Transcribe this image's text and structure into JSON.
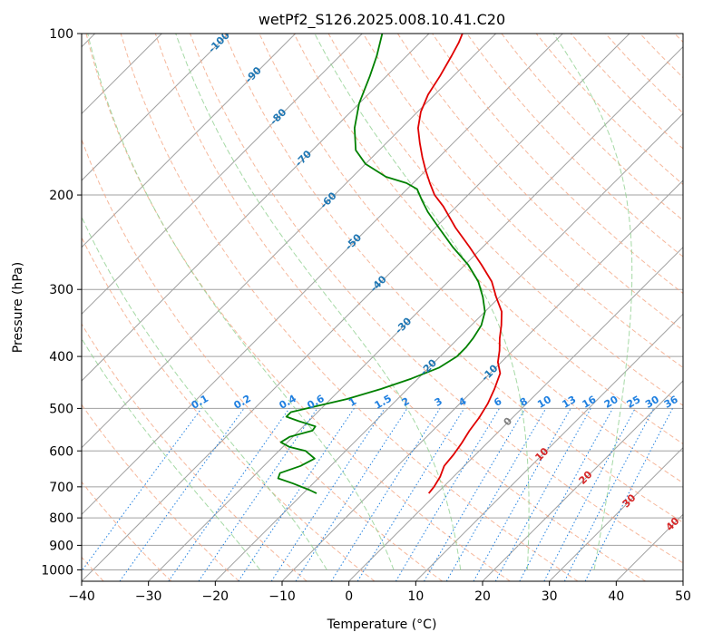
{
  "chart_data": {
    "type": "line",
    "subtype": "skew-t log-p diagram",
    "title": "wetPf2_S126.2025.008.10.41.C20",
    "xlabel": "Temperature (°C)",
    "ylabel": "Pressure (hPa)",
    "xlim": [
      -40,
      50
    ],
    "ylim": [
      1050,
      100
    ],
    "y_scale": "log",
    "x_ticks": [
      -40,
      -30,
      -20,
      -10,
      0,
      10,
      20,
      30,
      40,
      50
    ],
    "y_ticks": [
      100,
      200,
      300,
      400,
      500,
      600,
      700,
      800,
      900,
      1000
    ],
    "grid": true,
    "legend": "none",
    "colors": {
      "temperature": "#e00000",
      "dewpoint": "#008000",
      "dry_adiabat": "#f4a582",
      "moist_adiabat": "#8fcf8f",
      "isotherm": "#a0a0a0",
      "isobar": "#a0a0a0",
      "mixing_ratio": "#2080e0",
      "label_blue": "#1f77b4",
      "label_red": "#d62728",
      "label_gray": "#7f7f7f"
    },
    "series": [
      {
        "name": "",
        "role": "temperature",
        "points": [
          {
            "p": 720,
            "t": -1.2
          },
          {
            "p": 700,
            "t": -1.4
          },
          {
            "p": 670,
            "t": -2.0
          },
          {
            "p": 640,
            "t": -3.0
          },
          {
            "p": 610,
            "t": -3.3
          },
          {
            "p": 580,
            "t": -3.8
          },
          {
            "p": 550,
            "t": -4.5
          },
          {
            "p": 520,
            "t": -5.0
          },
          {
            "p": 490,
            "t": -5.8
          },
          {
            "p": 460,
            "t": -7.0
          },
          {
            "p": 430,
            "t": -8.5
          },
          {
            "p": 410,
            "t": -10.5
          },
          {
            "p": 390,
            "t": -12.0
          },
          {
            "p": 370,
            "t": -13.8
          },
          {
            "p": 350,
            "t": -15.5
          },
          {
            "p": 330,
            "t": -17.5
          },
          {
            "p": 310,
            "t": -20.5
          },
          {
            "p": 290,
            "t": -23.5
          },
          {
            "p": 270,
            "t": -27.5
          },
          {
            "p": 250,
            "t": -32.0
          },
          {
            "p": 230,
            "t": -37.0
          },
          {
            "p": 210,
            "t": -42.0
          },
          {
            "p": 200,
            "t": -45.0
          },
          {
            "p": 190,
            "t": -47.5
          },
          {
            "p": 180,
            "t": -50.0
          },
          {
            "p": 170,
            "t": -52.5
          },
          {
            "p": 160,
            "t": -55.0
          },
          {
            "p": 150,
            "t": -57.5
          },
          {
            "p": 140,
            "t": -59.5
          },
          {
            "p": 130,
            "t": -61.0
          },
          {
            "p": 120,
            "t": -62.0
          },
          {
            "p": 110,
            "t": -63.3
          },
          {
            "p": 104,
            "t": -64.2
          },
          {
            "p": 100,
            "t": -65.0
          }
        ]
      },
      {
        "name": "",
        "role": "dewpoint",
        "points": [
          {
            "p": 720,
            "t": -18.0
          },
          {
            "p": 710,
            "t": -19.5
          },
          {
            "p": 690,
            "t": -23.0
          },
          {
            "p": 675,
            "t": -26.0
          },
          {
            "p": 660,
            "t": -26.5
          },
          {
            "p": 640,
            "t": -24.5
          },
          {
            "p": 620,
            "t": -23.5
          },
          {
            "p": 600,
            "t": -26.0
          },
          {
            "p": 590,
            "t": -29.0
          },
          {
            "p": 578,
            "t": -31.0
          },
          {
            "p": 565,
            "t": -30.5
          },
          {
            "p": 550,
            "t": -28.0
          },
          {
            "p": 540,
            "t": -28.2
          },
          {
            "p": 528,
            "t": -31.5
          },
          {
            "p": 518,
            "t": -34.0
          },
          {
            "p": 508,
            "t": -34.0
          },
          {
            "p": 495,
            "t": -31.0
          },
          {
            "p": 480,
            "t": -27.5
          },
          {
            "p": 460,
            "t": -24.0
          },
          {
            "p": 440,
            "t": -21.0
          },
          {
            "p": 420,
            "t": -18.5
          },
          {
            "p": 400,
            "t": -17.5
          },
          {
            "p": 385,
            "t": -17.5
          },
          {
            "p": 370,
            "t": -17.8
          },
          {
            "p": 350,
            "t": -18.5
          },
          {
            "p": 330,
            "t": -20.0
          },
          {
            "p": 310,
            "t": -22.5
          },
          {
            "p": 290,
            "t": -25.5
          },
          {
            "p": 270,
            "t": -29.5
          },
          {
            "p": 250,
            "t": -34.5
          },
          {
            "p": 230,
            "t": -39.5
          },
          {
            "p": 215,
            "t": -43.5
          },
          {
            "p": 205,
            "t": -46.0
          },
          {
            "p": 195,
            "t": -48.5
          },
          {
            "p": 190,
            "t": -51.0
          },
          {
            "p": 185,
            "t": -55.0
          },
          {
            "p": 175,
            "t": -60.0
          },
          {
            "p": 165,
            "t": -63.5
          },
          {
            "p": 150,
            "t": -67.0
          },
          {
            "p": 135,
            "t": -70.0
          },
          {
            "p": 120,
            "t": -72.5
          },
          {
            "p": 110,
            "t": -74.5
          },
          {
            "p": 100,
            "t": -77.0
          }
        ]
      }
    ],
    "isotherm_labels": {
      "values": [
        -100,
        -90,
        -80,
        -70,
        -60,
        -50,
        -40,
        -30,
        -20,
        -10,
        0,
        10,
        20,
        30,
        40
      ],
      "text": [
        "-100",
        "-90",
        "-80",
        "-70",
        "-60",
        "-50",
        "-40",
        "-30",
        "-20",
        "-10",
        "0",
        "10",
        "20",
        "30",
        "40"
      ]
    },
    "mixing_ratio_labels": {
      "values": [
        0.1,
        0.2,
        0.4,
        0.6,
        1,
        1.5,
        2,
        3,
        4,
        6,
        8,
        10,
        13,
        16,
        20,
        25,
        30,
        36
      ],
      "text": [
        "0.1",
        "0.2",
        "0.4",
        "0.6",
        "1",
        "1.5",
        "2",
        "3",
        "4",
        "6",
        "8",
        "10",
        "13",
        "16",
        "20",
        "25",
        "30",
        "36"
      ]
    },
    "dry_adiabats_c": [
      -80,
      -70,
      -60,
      -50,
      -40,
      -30,
      -20,
      -10,
      0,
      10,
      20,
      30,
      40,
      50,
      60,
      70,
      80,
      90,
      100,
      110,
      120,
      130,
      140,
      150,
      160,
      170,
      180,
      190,
      200
    ],
    "moist_adiabats_c": [
      -15,
      -5,
      5,
      15,
      25,
      35
    ]
  }
}
